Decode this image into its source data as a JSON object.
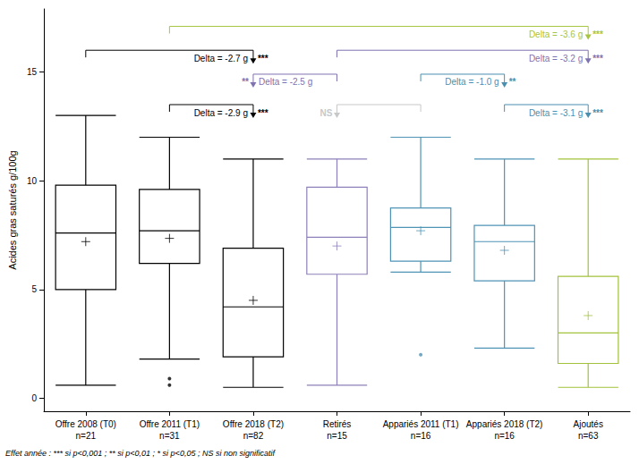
{
  "chart_data": {
    "type": "boxplot",
    "y_label": "Acides gras saturés g/100g",
    "categories": [
      "Offre 2008 (T0)\nn=21",
      "Offre 2011 (T1)\nn=31",
      "Offre 2018 (T2)\nn=82",
      "Retirés\nn=15",
      "Appariés 2011 (T1)\nn=16",
      "Appariés 2018 (T2)\nn=16",
      "Ajoutés\nn=63"
    ],
    "colors": [
      "#000000",
      "#000000",
      "#000000",
      "#8e80b8",
      "#4f93b5",
      "#4f93b5",
      "#a3c23b"
    ],
    "boxes": [
      [
        0.6,
        5.0,
        7.6,
        9.8,
        13.0
      ],
      [
        1.8,
        6.2,
        7.7,
        9.6,
        12.0
      ],
      [
        0.5,
        1.9,
        4.2,
        6.9,
        11.0
      ],
      [
        0.6,
        5.7,
        7.4,
        9.7,
        11.0
      ],
      [
        5.8,
        6.3,
        7.85,
        8.75,
        12.0
      ],
      [
        2.3,
        5.4,
        7.2,
        7.95,
        11.0
      ],
      [
        0.5,
        1.6,
        3.0,
        5.6,
        11.0
      ]
    ],
    "means": [
      7.2,
      7.35,
      4.5,
      7.0,
      7.7,
      6.8,
      3.8
    ],
    "outliers": [
      [],
      [
        0.9,
        0.6
      ],
      [],
      [],
      [
        2.0
      ],
      [],
      []
    ],
    "ylim": [
      -0.6,
      17.9
    ],
    "yticks": [
      0,
      5,
      10,
      15
    ],
    "grid": false,
    "brackets": [
      {
        "from": "Offre 2011 (T1)\nn=31",
        "to": "Ajoutés\nn=63",
        "arrow": "Ajoutés\nn=63",
        "y": 17.1,
        "label": "Delta = -3.6 g",
        "sig": "***",
        "color": "#a7c540"
      },
      {
        "from": "Offre 2008 (T0)\nn=21",
        "to": "Offre 2018 (T2)\nn=82",
        "arrow": "Offre 2018 (T2)\nn=82",
        "y": 16.0,
        "label": "Delta = -2.7 g",
        "sig": "***",
        "color": "#000000"
      },
      {
        "from": "Retirés\nn=15",
        "to": "Ajoutés\nn=63",
        "arrow": "Ajoutés\nn=63",
        "y": 16.0,
        "label": "Delta = -3.2 g",
        "sig": "***",
        "color": "#7f72b0"
      },
      {
        "from": "Offre 2018 (T2)\nn=82",
        "to": "Retirés\nn=15",
        "arrow": "Offre 2018 (T2)\nn=82",
        "y": 14.9,
        "label": "Delta = -2.5 g",
        "sig": "**",
        "color": "#7f72b0"
      },
      {
        "from": "Appariés 2011 (T1)\nn=16",
        "to": "Appariés 2018 (T2)\nn=16",
        "arrow": "Appariés 2018 (T2)\nn=16",
        "y": 14.9,
        "label": "Delta = -1.0 g",
        "sig": "**",
        "color": "#4a8fb0"
      },
      {
        "from": "Offre 2011 (T1)\nn=31",
        "to": "Offre 2018 (T2)\nn=82",
        "arrow": "Offre 2018 (T2)\nn=82",
        "y": 13.5,
        "label": "Delta = -2.9 g",
        "sig": "***",
        "color": "#000000"
      },
      {
        "from": "Retirés\nn=15",
        "to": "Appariés 2011 (T1)\nn=16",
        "arrow": "Retirés\nn=15",
        "y": 13.5,
        "sig": "NS",
        "color": "#c8c8c8"
      },
      {
        "from": "Appariés 2018 (T2)\nn=16",
        "to": "Ajoutés\nn=63",
        "arrow": "Ajoutés\nn=63",
        "y": 13.5,
        "label": "Delta = -3.1 g",
        "sig": "***",
        "color": "#4a8fb0"
      }
    ],
    "footnote": "Effet année : *** si p<0,001 ; ** si p<0,01 ; * si p<0,05 ; NS si non significatif"
  }
}
